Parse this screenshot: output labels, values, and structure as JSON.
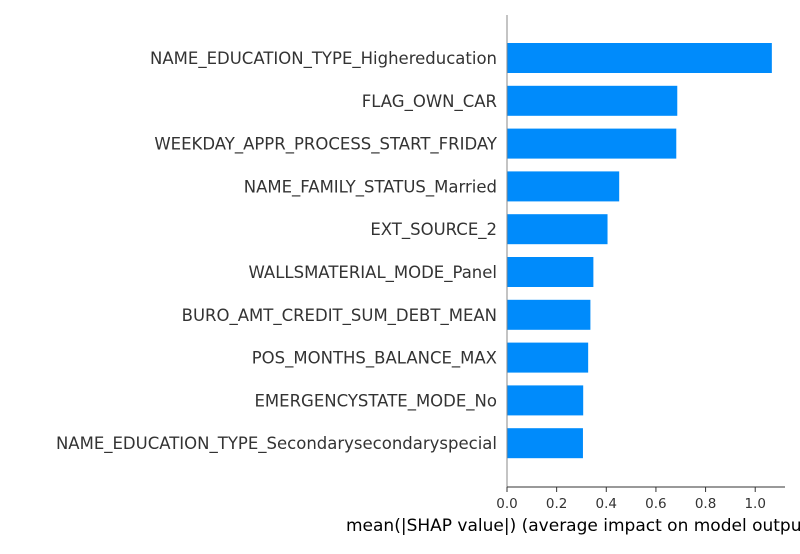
{
  "chart_data": {
    "type": "bar",
    "orientation": "horizontal",
    "categories": [
      "NAME_EDUCATION_TYPE_Highereducation",
      "FLAG_OWN_CAR",
      "WEEKDAY_APPR_PROCESS_START_FRIDAY",
      "NAME_FAMILY_STATUS_Married",
      "EXT_SOURCE_2",
      "WALLSMATERIAL_MODE_Panel",
      "BURO_AMT_CREDIT_SUM_DEBT_MEAN",
      "POS_MONTHS_BALANCE_MAX",
      "EMERGENCYSTATE_MODE_No",
      "NAME_EDUCATION_TYPE_Secondarysecondaryspecial"
    ],
    "values": [
      1.067,
      0.686,
      0.682,
      0.452,
      0.405,
      0.348,
      0.336,
      0.327,
      0.307,
      0.306
    ],
    "title": "",
    "xlabel": "mean(|SHAP value|) (average impact on model output magnitude)",
    "ylabel": "",
    "xlim": [
      0,
      1.12
    ],
    "xticks": [
      "0.0",
      "0.2",
      "0.4",
      "0.6",
      "0.8",
      "1.0"
    ],
    "grid": false,
    "bar_color": "#008bfb",
    "axis_color": "#333333",
    "text_color": "#333333"
  }
}
